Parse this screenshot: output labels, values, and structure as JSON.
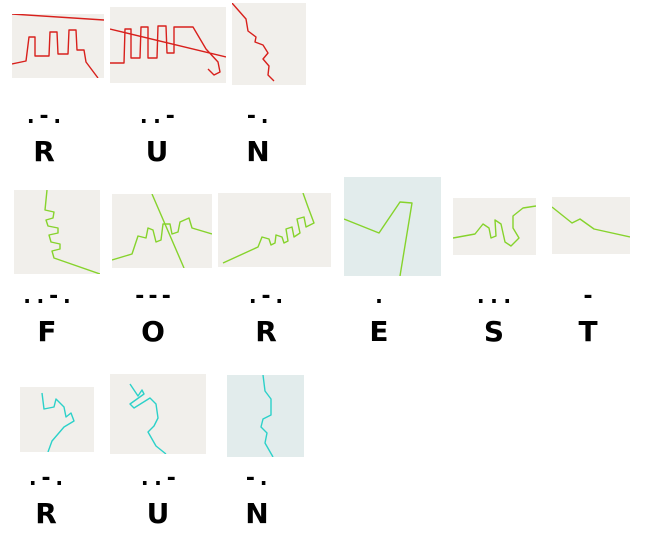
{
  "colors": {
    "tile_beige": "#f1efeb",
    "tile_blue": "#e2ecec",
    "line_red": "#d8201c",
    "line_green": "#86d32c",
    "line_cyan": "#2cd1c9"
  },
  "rows": [
    {
      "name": "row-run-top",
      "line_color": "#d8201c",
      "items": [
        {
          "morse": ".-.",
          "letter": "R",
          "tile": "beige"
        },
        {
          "morse": "..-",
          "letter": "U",
          "tile": "beige"
        },
        {
          "morse": "-.",
          "letter": "N",
          "tile": "beige"
        }
      ]
    },
    {
      "name": "row-forest",
      "line_color": "#86d32c",
      "items": [
        {
          "morse": "..-.",
          "letter": "F",
          "tile": "beige"
        },
        {
          "morse": "---",
          "letter": "O",
          "tile": "beige"
        },
        {
          "morse": ".-.",
          "letter": "R",
          "tile": "beige"
        },
        {
          "morse": ".",
          "letter": "E",
          "tile": "blue"
        },
        {
          "morse": "...",
          "letter": "S",
          "tile": "beige"
        },
        {
          "morse": "-",
          "letter": "T",
          "tile": "beige"
        }
      ]
    },
    {
      "name": "row-run-bottom",
      "line_color": "#2cd1c9",
      "items": [
        {
          "morse": ".-.",
          "letter": "R",
          "tile": "beige"
        },
        {
          "morse": "..-",
          "letter": "U",
          "tile": "beige"
        },
        {
          "morse": "-.",
          "letter": "N",
          "tile": "blue"
        }
      ]
    }
  ]
}
